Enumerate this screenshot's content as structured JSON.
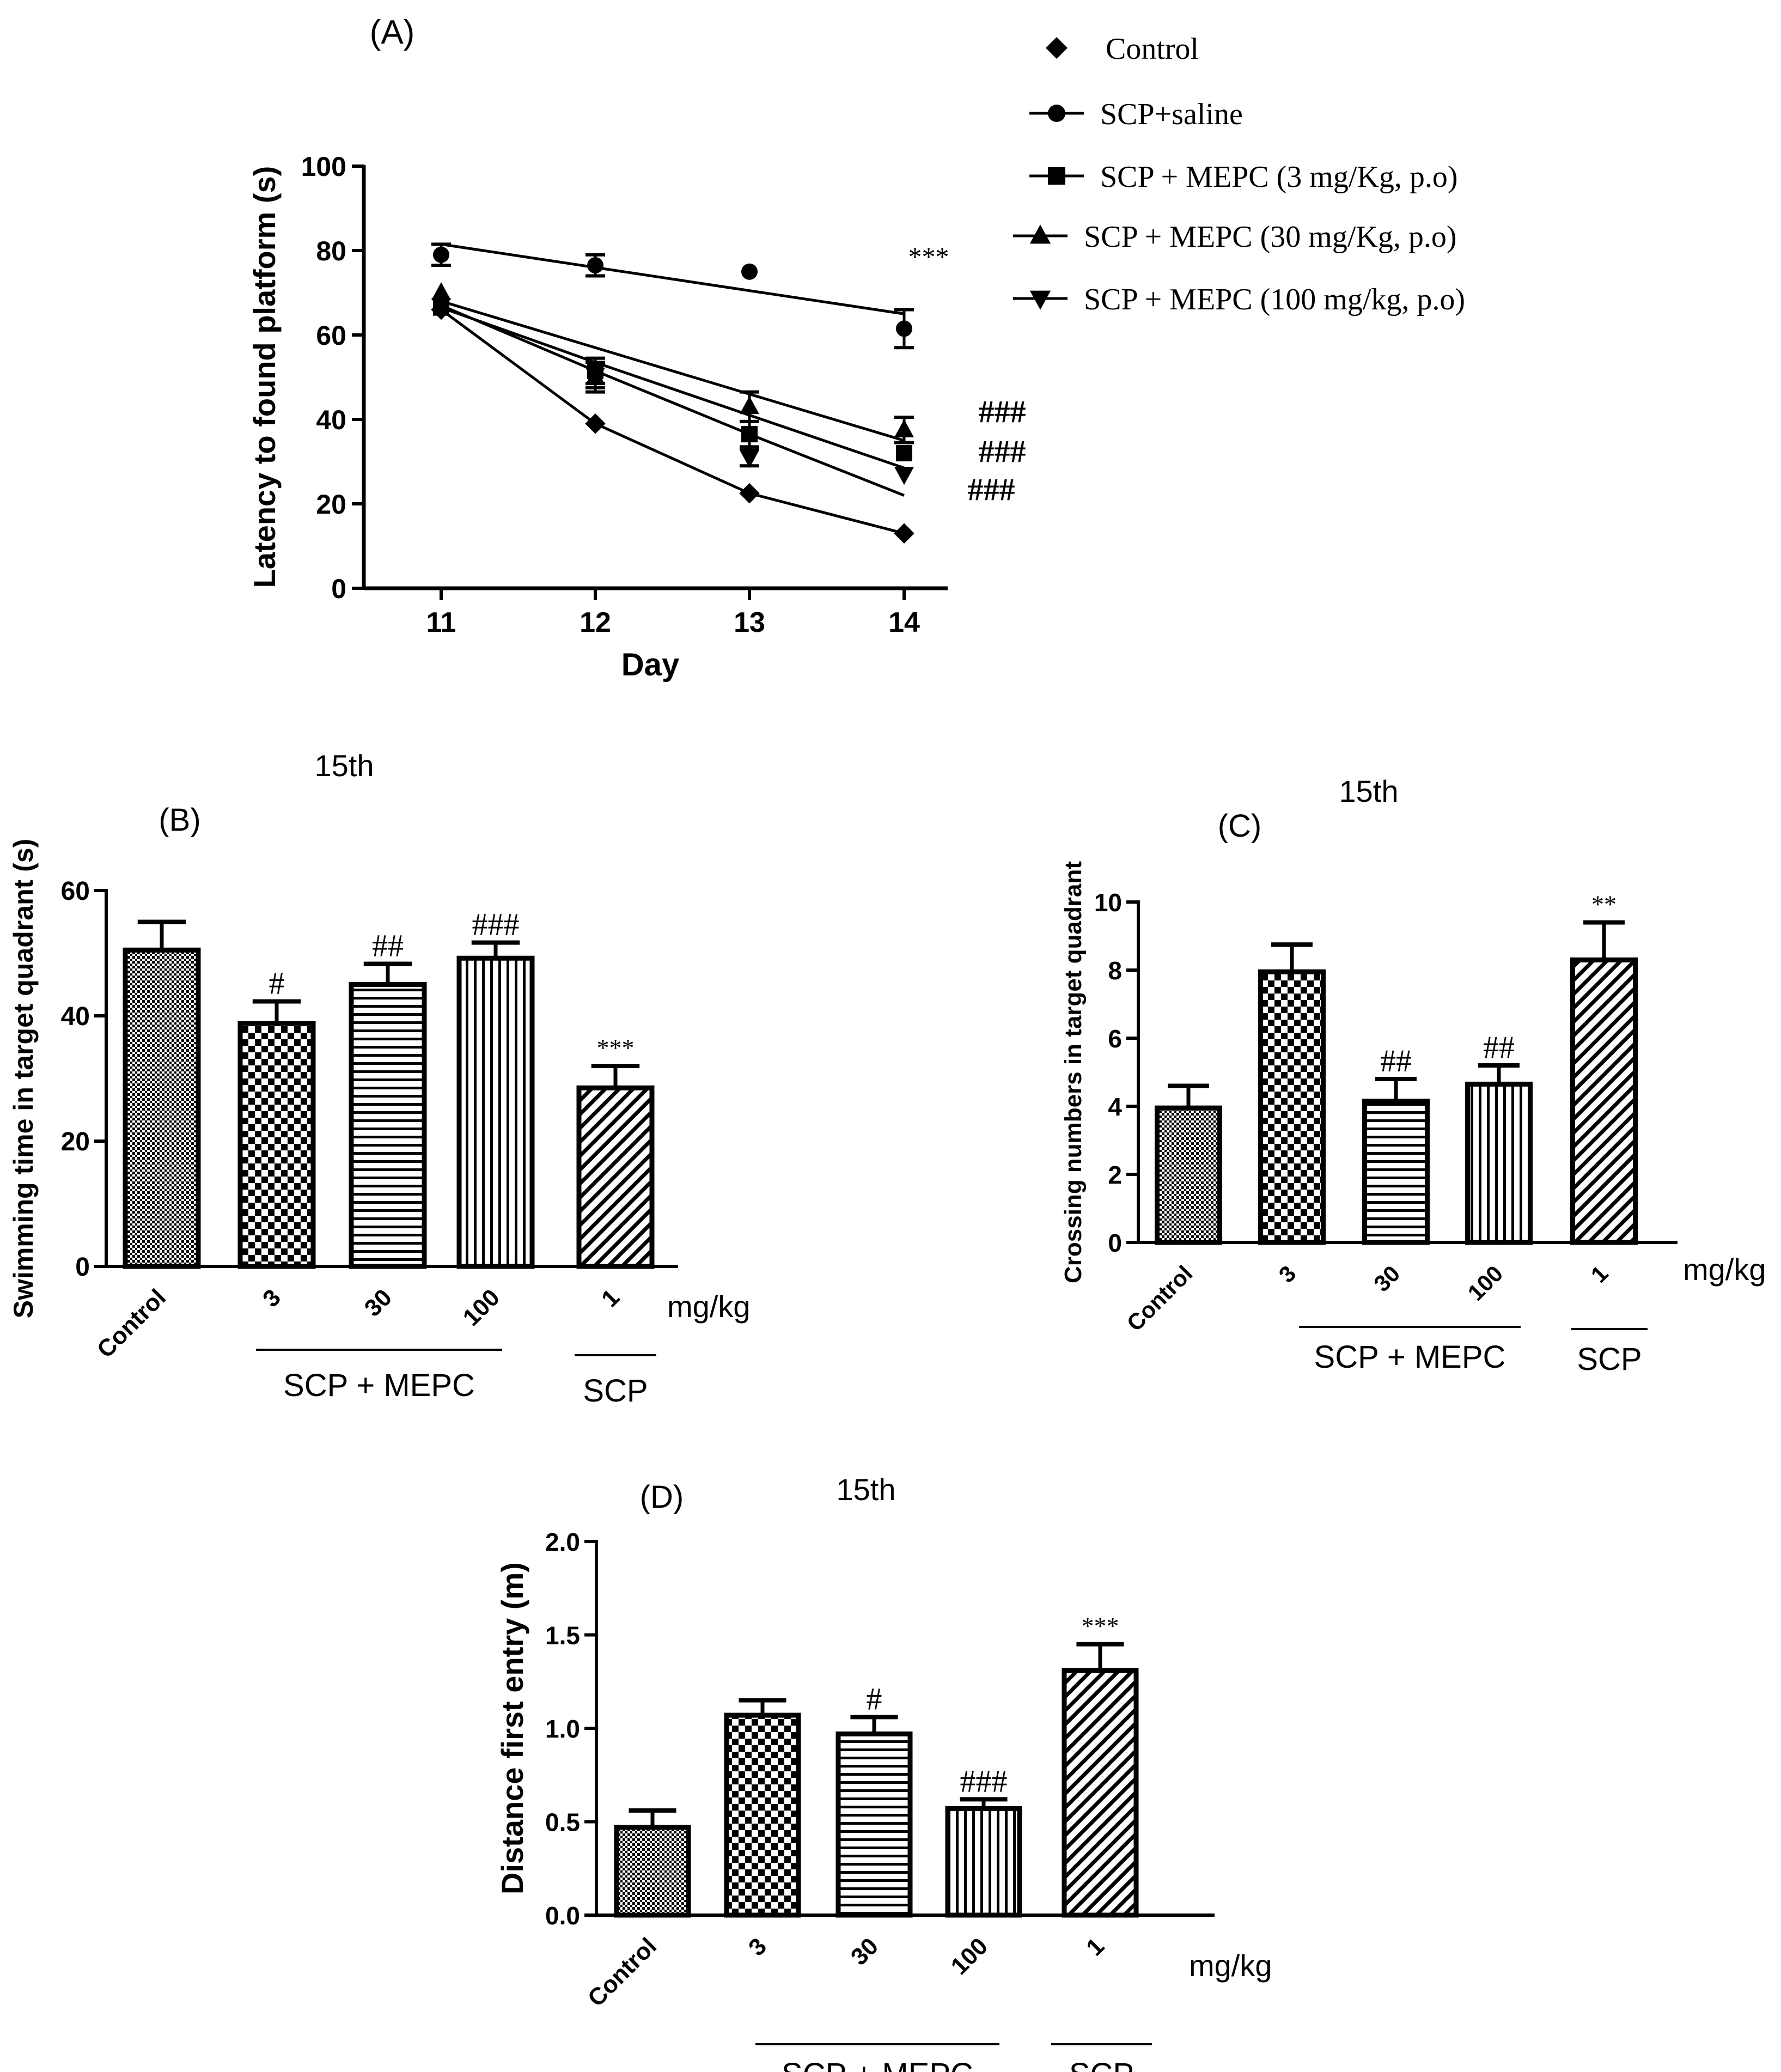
{
  "colors": {
    "ink": "#000000",
    "background": "#ffffff"
  },
  "chart_data": [
    {
      "id": "A",
      "type": "line",
      "panel_label": "(A)",
      "xlabel": "Day",
      "ylabel": "Latency to found platform (s)",
      "x": [
        11,
        12,
        13,
        14
      ],
      "x_tick_labels": [
        "11",
        "12",
        "13",
        "14"
      ],
      "ylim": [
        0,
        100
      ],
      "y_ticks": [
        0,
        20,
        40,
        60,
        80,
        100
      ],
      "y_tick_labels": [
        "0",
        "20",
        "40",
        "60",
        "80",
        "100"
      ],
      "series": [
        {
          "name": "Control",
          "marker": "diamond",
          "values": [
            66,
            39,
            22.5,
            13
          ],
          "errors": [
            0,
            0,
            0,
            0
          ],
          "fit": [
            66,
            39,
            22.5,
            13
          ]
        },
        {
          "name": "SCP+saline",
          "marker": "circle",
          "values": [
            79,
            76.5,
            75,
            61.5
          ],
          "errors": [
            2.5,
            2.5,
            0,
            4.5
          ],
          "fit": [
            81.5,
            76,
            70.5,
            65
          ]
        },
        {
          "name": "SCP + MEPC (3 mg/Kg, p.o)",
          "marker": "square",
          "values": [
            66.5,
            51.5,
            36.5,
            32
          ],
          "errors": [
            0,
            3,
            3,
            0
          ],
          "fit": [
            66.5,
            53.5,
            41,
            28.5
          ]
        },
        {
          "name": "SCP + MEPC (30 mg/Kg, p.o)",
          "marker": "triangle-up",
          "values": [
            70,
            50,
            43,
            37.5
          ],
          "errors": [
            0,
            3.5,
            3.5,
            3
          ],
          "fit": [
            68,
            57,
            46,
            35
          ]
        },
        {
          "name": "SCP + MEPC (100 mg/kg, p.o)",
          "marker": "triangle-down",
          "values": [
            67,
            50.5,
            31,
            27
          ],
          "errors": [
            0,
            3,
            2,
            0
          ],
          "fit": [
            67,
            51.5,
            36.5,
            22
          ]
        }
      ],
      "annotations": [
        {
          "series": 1,
          "x_index": 3,
          "text": "***"
        },
        {
          "series": 3,
          "x_index": 3,
          "text": "###"
        },
        {
          "series": 2,
          "x_index": 3,
          "text": "###"
        },
        {
          "series": 4,
          "x_index": 3,
          "text": "###"
        }
      ]
    },
    {
      "id": "B",
      "type": "bar",
      "panel_label": "(B)",
      "title": "15th",
      "ylabel": "Swimming time in target quadrant (s)",
      "categories": [
        "Control",
        "3",
        "30",
        "100",
        "1"
      ],
      "values": [
        50.5,
        38.8,
        45,
        49.2,
        28.5
      ],
      "errors": [
        4.5,
        3.5,
        3.3,
        2.5,
        3.5
      ],
      "significance": [
        "",
        "#",
        "##",
        "###",
        "***"
      ],
      "patterns": [
        "fine",
        "check",
        "hlines",
        "vlines",
        "diag"
      ],
      "ylim": [
        0,
        60
      ],
      "y_ticks": [
        0,
        20,
        40,
        60
      ],
      "y_tick_labels": [
        "0",
        "20",
        "40",
        "60"
      ],
      "unit_label": "mg/kg",
      "groups": [
        {
          "label": "SCP + MEPC",
          "from": 1,
          "to": 3
        },
        {
          "label": "SCP",
          "from": 4,
          "to": 4
        }
      ]
    },
    {
      "id": "C",
      "type": "bar",
      "panel_label": "(C)",
      "title": "15th",
      "ylabel": "Crossing numbers in target quadrant",
      "categories": [
        "Control",
        "3",
        "30",
        "100",
        "1"
      ],
      "values": [
        3.95,
        7.95,
        4.15,
        4.65,
        8.3
      ],
      "errors": [
        0.65,
        0.8,
        0.65,
        0.55,
        1.1
      ],
      "significance": [
        "",
        "",
        "##",
        "##",
        "**"
      ],
      "patterns": [
        "fine",
        "check",
        "hlines",
        "vlines",
        "diag"
      ],
      "ylim": [
        0,
        10
      ],
      "y_ticks": [
        0,
        2,
        4,
        6,
        8,
        10
      ],
      "y_tick_labels": [
        "0",
        "2",
        "4",
        "6",
        "8",
        "10"
      ],
      "unit_label": "mg/kg",
      "groups": [
        {
          "label": "SCP + MEPC",
          "from": 1,
          "to": 3
        },
        {
          "label": "SCP",
          "from": 4,
          "to": 4
        }
      ]
    },
    {
      "id": "D",
      "type": "bar",
      "panel_label": "(D)",
      "title": "15th",
      "ylabel": "Distance first entry (m)",
      "categories": [
        "Control",
        "3",
        "30",
        "100",
        "1"
      ],
      "values": [
        0.47,
        1.07,
        0.97,
        0.57,
        1.31
      ],
      "errors": [
        0.09,
        0.08,
        0.09,
        0.05,
        0.14
      ],
      "significance": [
        "",
        "",
        "#",
        "###",
        "***"
      ],
      "patterns": [
        "fine",
        "check",
        "hlines",
        "vlines",
        "diag"
      ],
      "ylim": [
        0,
        2.0
      ],
      "y_ticks": [
        0,
        0.5,
        1.0,
        1.5,
        2.0
      ],
      "y_tick_labels": [
        "0.0",
        "0.5",
        "1.0",
        "1.5",
        "2.0"
      ],
      "unit_label": "mg/kg",
      "groups": [
        {
          "label": "SCP + MEPC",
          "from": 1,
          "to": 3
        },
        {
          "label": "SCP",
          "from": 4,
          "to": 4
        }
      ]
    }
  ]
}
